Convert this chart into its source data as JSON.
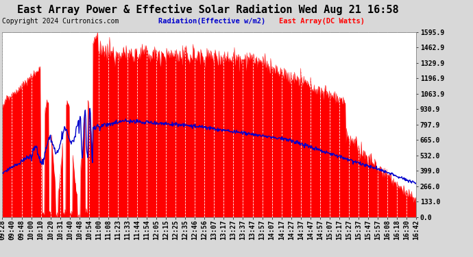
{
  "title": "East Array Power & Effective Solar Radiation Wed Aug 21 16:58",
  "copyright": "Copyright 2024 Curtronics.com",
  "legend_radiation": "Radiation(Effective w/m2)",
  "legend_array": "East Array(DC Watts)",
  "ylabel_right_ticks": [
    0.0,
    133.0,
    266.0,
    399.0,
    532.0,
    665.0,
    797.9,
    930.9,
    1063.9,
    1196.9,
    1329.9,
    1462.9,
    1595.9
  ],
  "ymax": 1595.9,
  "ymin": 0.0,
  "bg_color": "#ffffff",
  "fig_bg_color": "#d8d8d8",
  "red_color": "#ff0000",
  "blue_color": "#0000cc",
  "grid_color": "#aaaaaa",
  "title_color": "#000000",
  "title_fontsize": 11,
  "copyright_color": "#000000",
  "copyright_fontsize": 7,
  "tick_fontsize": 7,
  "x_labels": [
    "09:28",
    "09:40",
    "09:48",
    "10:00",
    "10:10",
    "10:20",
    "10:31",
    "10:40",
    "10:48",
    "10:54",
    "11:00",
    "11:08",
    "11:23",
    "11:33",
    "11:44",
    "11:54",
    "12:05",
    "12:15",
    "12:25",
    "12:35",
    "12:46",
    "12:56",
    "13:07",
    "13:17",
    "13:27",
    "13:37",
    "13:47",
    "13:57",
    "14:07",
    "14:17",
    "14:27",
    "14:37",
    "14:47",
    "14:57",
    "15:07",
    "15:17",
    "15:27",
    "15:37",
    "15:47",
    "15:57",
    "16:08",
    "16:18",
    "16:30",
    "16:42"
  ]
}
